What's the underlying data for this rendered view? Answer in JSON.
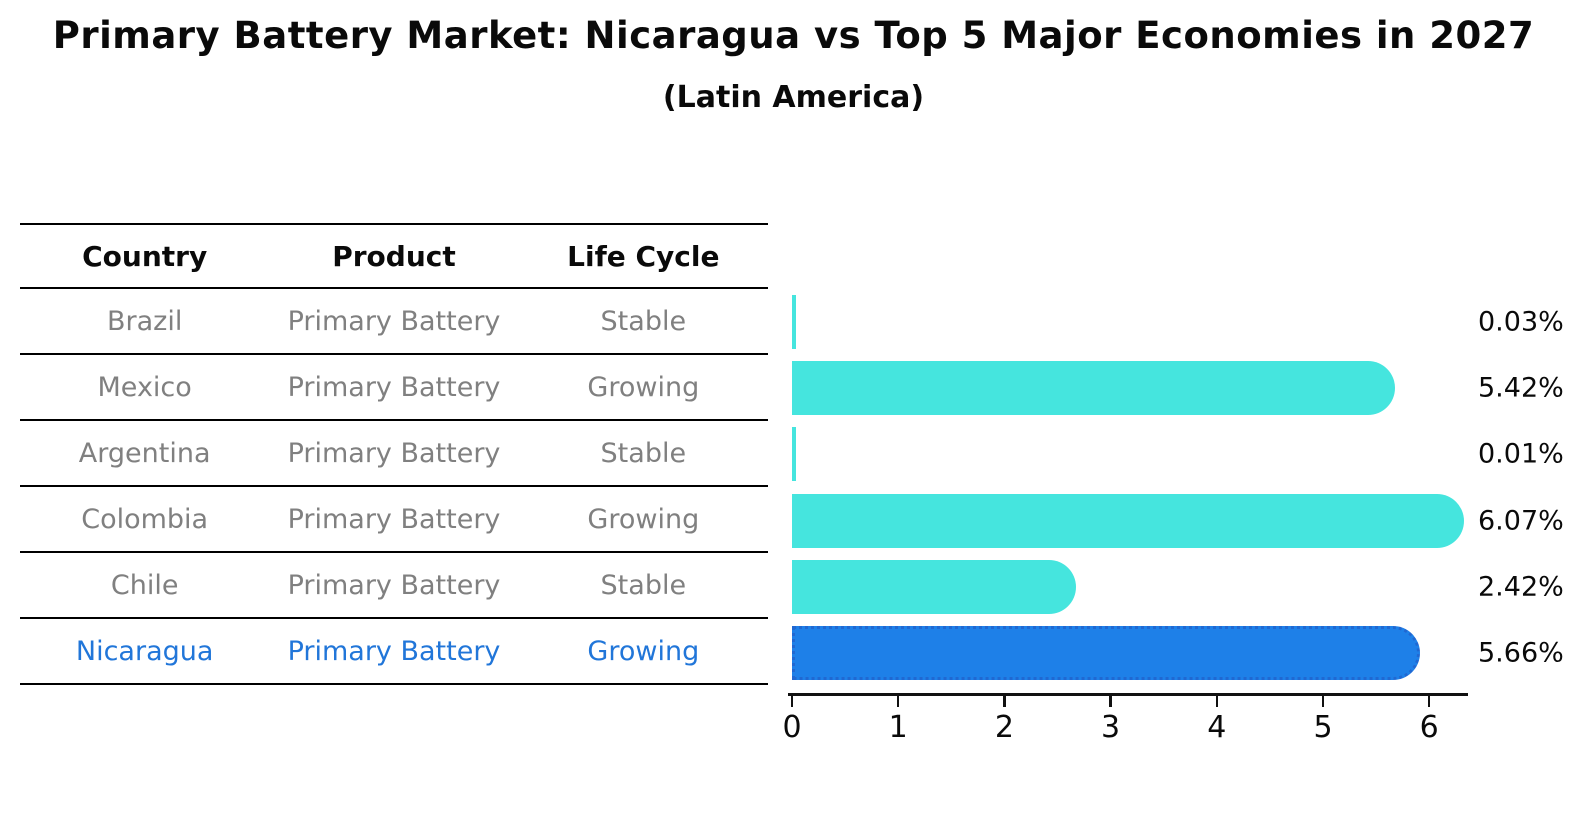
{
  "title": "Primary Battery Market: Nicaragua vs Top 5 Major Economies in 2027",
  "subtitle": "(Latin America)",
  "colors": {
    "bar_default": "#45e5de",
    "bar_highlight": "#1e80e8",
    "bar_highlight_border": "#2068d2",
    "highlight_text": "#2176d9",
    "table_text": "#808080",
    "header_text": "#0a0a0a",
    "axis": "#111111"
  },
  "table": {
    "columns": [
      "Country",
      "Product",
      "Life Cycle"
    ],
    "rows": [
      {
        "country": "Brazil",
        "product": "Primary Battery",
        "life_cycle": "Stable",
        "highlight": false
      },
      {
        "country": "Mexico",
        "product": "Primary Battery",
        "life_cycle": "Growing",
        "highlight": false
      },
      {
        "country": "Argentina",
        "product": "Primary Battery",
        "life_cycle": "Stable",
        "highlight": false
      },
      {
        "country": "Colombia",
        "product": "Primary Battery",
        "life_cycle": "Growing",
        "highlight": false
      },
      {
        "country": "Chile",
        "product": "Primary Battery",
        "life_cycle": "Stable",
        "highlight": false
      },
      {
        "country": "Nicaragua",
        "product": "Primary Battery",
        "life_cycle": "Growing",
        "highlight": true
      }
    ]
  },
  "chart_data": {
    "type": "bar",
    "orientation": "horizontal",
    "title": "Primary Battery Market: Nicaragua vs Top 5 Major Economies in 2027",
    "subtitle": "(Latin America)",
    "categories": [
      "Brazil",
      "Mexico",
      "Argentina",
      "Colombia",
      "Chile",
      "Nicaragua"
    ],
    "values": [
      0.03,
      5.42,
      0.01,
      6.07,
      2.42,
      5.66
    ],
    "value_labels": [
      "0.03%",
      "5.42%",
      "0.01%",
      "6.07%",
      "2.42%",
      "5.66%"
    ],
    "highlight_index": 5,
    "xlabel": "",
    "ylabel": "",
    "xlim": [
      0,
      6.4
    ],
    "x_ticks": [
      0,
      1,
      2,
      3,
      4,
      5,
      6
    ],
    "grid": false,
    "legend": false
  }
}
